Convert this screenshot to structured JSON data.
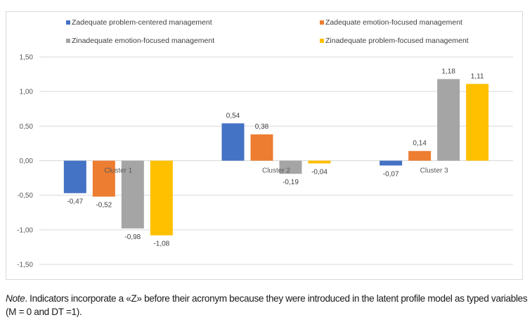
{
  "chart_data": {
    "type": "bar",
    "title": "",
    "xlabel": "",
    "ylabel": "",
    "categories": [
      "Cluster 1",
      "Cluster 2",
      "Cluster 3"
    ],
    "series": [
      {
        "name": "Zadequate problem-centered management",
        "color": "#4472c4",
        "values": [
          -0.47,
          0.54,
          -0.07
        ],
        "labels": [
          "-0,47",
          "0,54",
          "-0,07"
        ]
      },
      {
        "name": "Zadequate emotion-focused management",
        "color": "#ed7d31",
        "values": [
          -0.52,
          0.38,
          0.14
        ],
        "labels": [
          "-0,52",
          "0,38",
          "0,14"
        ]
      },
      {
        "name": "Zinadequate emotion-focused management",
        "color": "#a5a5a5",
        "values": [
          -0.98,
          -0.19,
          1.18
        ],
        "labels": [
          "-0,98",
          "-0,19",
          "1,18"
        ]
      },
      {
        "name": "Zinadequate problem-focused management",
        "color": "#ffc000",
        "values": [
          -1.08,
          -0.04,
          1.11
        ],
        "labels": [
          "-1,08",
          "-0,04",
          "1,11"
        ]
      }
    ],
    "ylim": [
      -1.5,
      1.5
    ],
    "yticks": [
      1.5,
      1.0,
      0.5,
      0.0,
      -0.5,
      -1.0,
      -1.5
    ],
    "ytick_labels": [
      "1,50",
      "1,00",
      "0,50",
      "0,00",
      "-0,50",
      "-1,00",
      "-1,50"
    ],
    "grid": true,
    "legend_position": "top"
  },
  "note": {
    "label": "Note",
    "text": ". Indicators incorporate a «Z» before their acronym because they were introduced in the latent profile model as typed variables (M = 0 and DT =1)."
  }
}
